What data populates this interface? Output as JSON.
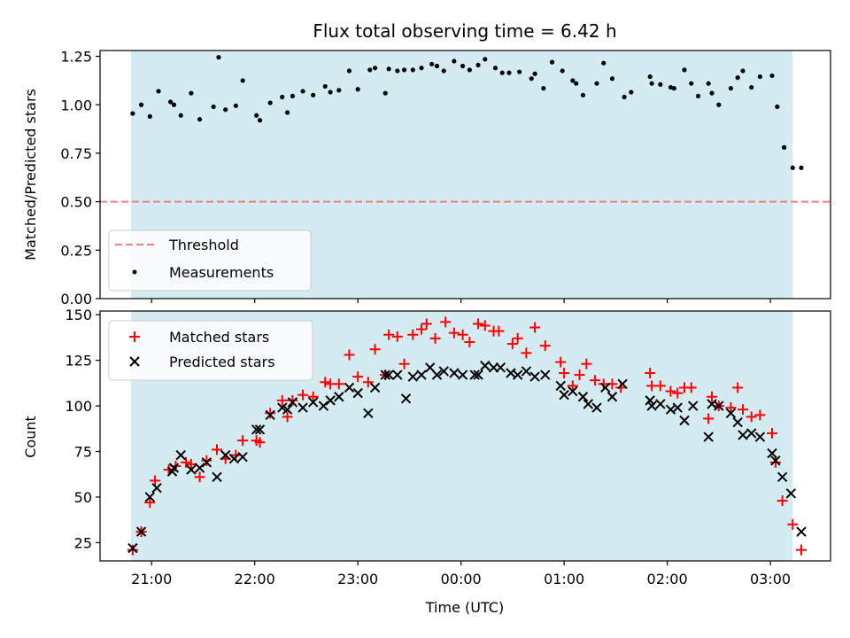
{
  "chart_data": [
    {
      "type": "scatter",
      "title": "Flux total observing time = 6.42 h",
      "xlabel": "",
      "ylabel": "Matched/Predicted stars",
      "ylim": [
        0,
        1.28
      ],
      "yticks": [
        0,
        0.25,
        0.5,
        0.75,
        1.0,
        1.25
      ],
      "ytick_labels": [
        "0.00",
        "0.25",
        "0.50",
        "0.75",
        "1.00",
        "1.25"
      ],
      "xlim": [
        "20:30",
        "03:35"
      ],
      "shaded_span": [
        "20:48",
        "03:13"
      ],
      "shade_color": "#d4ebf1",
      "threshold": {
        "name": "Threshold",
        "y": 0.5,
        "color": "#f08080",
        "style": "dashed"
      },
      "legend": {
        "position": "lower-left",
        "entries": [
          "Threshold",
          "Measurements"
        ]
      },
      "series": [
        {
          "name": "Measurements",
          "marker": "dot",
          "color": "#000000",
          "points": [
            [
              "20:49",
              0.955
            ],
            [
              "20:54",
              1.0
            ],
            [
              "20:59",
              0.94
            ],
            [
              "21:04",
              1.07
            ],
            [
              "21:11",
              1.015
            ],
            [
              "21:13",
              1.0
            ],
            [
              "21:17",
              0.945
            ],
            [
              "21:23",
              1.06
            ],
            [
              "21:28",
              0.925
            ],
            [
              "21:36",
              0.99
            ],
            [
              "21:39",
              1.245
            ],
            [
              "21:43",
              0.975
            ],
            [
              "21:49",
              0.995
            ],
            [
              "21:53",
              1.125
            ],
            [
              "22:01",
              0.945
            ],
            [
              "22:03",
              0.92
            ],
            [
              "22:09",
              1.01
            ],
            [
              "22:16",
              1.04
            ],
            [
              "22:19",
              0.96
            ],
            [
              "22:22",
              1.045
            ],
            [
              "22:28",
              1.07
            ],
            [
              "22:34",
              1.05
            ],
            [
              "22:41",
              1.095
            ],
            [
              "22:44",
              1.065
            ],
            [
              "22:49",
              1.075
            ],
            [
              "22:55",
              1.175
            ],
            [
              "23:00",
              1.08
            ],
            [
              "23:07",
              1.18
            ],
            [
              "23:10",
              1.19
            ],
            [
              "23:16",
              1.06
            ],
            [
              "23:18",
              1.185
            ],
            [
              "23:23",
              1.175
            ],
            [
              "23:27",
              1.18
            ],
            [
              "23:32",
              1.18
            ],
            [
              "23:37",
              1.19
            ],
            [
              "23:43",
              1.21
            ],
            [
              "23:46",
              1.2
            ],
            [
              "23:50",
              1.175
            ],
            [
              "23:56",
              1.225
            ],
            [
              "24:01",
              1.2
            ],
            [
              "24:05",
              1.18
            ],
            [
              "24:10",
              1.205
            ],
            [
              "24:14",
              1.235
            ],
            [
              "24:20",
              1.19
            ],
            [
              "24:24",
              1.165
            ],
            [
              "24:28",
              1.165
            ],
            [
              "24:34",
              1.17
            ],
            [
              "24:41",
              1.135
            ],
            [
              "24:43",
              1.16
            ],
            [
              "24:48",
              1.085
            ],
            [
              "24:53",
              1.22
            ],
            [
              "24:59",
              1.175
            ],
            [
              "25:05",
              1.125
            ],
            [
              "25:07",
              1.11
            ],
            [
              "25:11",
              1.05
            ],
            [
              "25:19",
              1.11
            ],
            [
              "25:23",
              1.215
            ],
            [
              "25:28",
              1.135
            ],
            [
              "25:35",
              1.04
            ],
            [
              "25:39",
              1.065
            ],
            [
              "25:50",
              1.145
            ],
            [
              "25:51",
              1.11
            ],
            [
              "25:56",
              1.105
            ],
            [
              "26:02",
              1.09
            ],
            [
              "26:04",
              1.085
            ],
            [
              "26:10",
              1.18
            ],
            [
              "26:14",
              1.11
            ],
            [
              "26:18",
              1.045
            ],
            [
              "26:24",
              1.11
            ],
            [
              "26:26",
              1.06
            ],
            [
              "26:30",
              1.0
            ],
            [
              "26:37",
              1.085
            ],
            [
              "26:41",
              1.14
            ],
            [
              "26:44",
              1.175
            ],
            [
              "26:49",
              1.09
            ],
            [
              "26:54",
              1.145
            ],
            [
              "27:01",
              1.15
            ],
            [
              "27:04",
              0.99
            ],
            [
              "27:08",
              0.78
            ],
            [
              "27:13",
              0.675
            ],
            [
              "27:18",
              0.675
            ]
          ]
        }
      ]
    },
    {
      "type": "scatter",
      "title": "",
      "xlabel": "Time (UTC)",
      "ylabel": "Count",
      "ylim": [
        15,
        152
      ],
      "yticks": [
        25,
        50,
        75,
        100,
        125,
        150
      ],
      "ytick_labels": [
        "25",
        "50",
        "75",
        "100",
        "125",
        "150"
      ],
      "xlim": [
        "20:30",
        "03:35"
      ],
      "xticks": [
        "21:00",
        "22:00",
        "23:00",
        "00:00",
        "01:00",
        "02:00",
        "03:00"
      ],
      "shaded_span": [
        "20:48",
        "03:13"
      ],
      "shade_color": "#d4ebf1",
      "legend": {
        "position": "upper-left",
        "entries": [
          "Matched stars",
          "Predicted stars"
        ]
      },
      "series": [
        {
          "name": "Matched stars",
          "marker": "plus",
          "color": "#ff0000",
          "points": [
            [
              "20:49",
              21
            ],
            [
              "20:54",
              31
            ],
            [
              "20:59",
              47
            ],
            [
              "21:02",
              59
            ],
            [
              "21:10",
              65
            ],
            [
              "21:14",
              67
            ],
            [
              "21:20",
              69
            ],
            [
              "21:23",
              68
            ],
            [
              "21:28",
              61
            ],
            [
              "21:32",
              70
            ],
            [
              "21:38",
              76
            ],
            [
              "21:43",
              71
            ],
            [
              "21:49",
              73
            ],
            [
              "21:53",
              81
            ],
            [
              "22:01",
              81
            ],
            [
              "22:03",
              80
            ],
            [
              "22:09",
              96
            ],
            [
              "22:16",
              103
            ],
            [
              "22:19",
              94
            ],
            [
              "22:22",
              103
            ],
            [
              "22:28",
              106
            ],
            [
              "22:34",
              105
            ],
            [
              "22:41",
              113
            ],
            [
              "22:44",
              112
            ],
            [
              "22:49",
              112
            ],
            [
              "22:55",
              128
            ],
            [
              "23:00",
              116
            ],
            [
              "23:06",
              113
            ],
            [
              "23:10",
              131
            ],
            [
              "23:16",
              117
            ],
            [
              "23:18",
              139
            ],
            [
              "23:23",
              138
            ],
            [
              "23:27",
              123
            ],
            [
              "23:32",
              139
            ],
            [
              "23:37",
              142
            ],
            [
              "23:40",
              145
            ],
            [
              "23:45",
              137
            ],
            [
              "23:51",
              146
            ],
            [
              "23:56",
              140
            ],
            [
              "24:01",
              139
            ],
            [
              "24:05",
              135
            ],
            [
              "24:10",
              145
            ],
            [
              "24:14",
              144
            ],
            [
              "24:19",
              141
            ],
            [
              "24:22",
              141
            ],
            [
              "24:30",
              134
            ],
            [
              "24:33",
              137
            ],
            [
              "24:38",
              129
            ],
            [
              "24:43",
              143
            ],
            [
              "24:49",
              133
            ],
            [
              "24:58",
              124
            ],
            [
              "25:00",
              118
            ],
            [
              "25:05",
              111
            ],
            [
              "25:09",
              117
            ],
            [
              "25:13",
              123
            ],
            [
              "25:18",
              114
            ],
            [
              "25:23",
              112
            ],
            [
              "25:28",
              112
            ],
            [
              "25:33",
              110
            ],
            [
              "25:50",
              118
            ],
            [
              "25:51",
              111
            ],
            [
              "25:56",
              111
            ],
            [
              "26:02",
              108
            ],
            [
              "26:06",
              107
            ],
            [
              "26:10",
              110
            ],
            [
              "26:14",
              110
            ],
            [
              "26:24",
              93
            ],
            [
              "26:26",
              105
            ],
            [
              "26:30",
              100
            ],
            [
              "26:37",
              99
            ],
            [
              "26:41",
              110
            ],
            [
              "26:44",
              98
            ],
            [
              "26:49",
              94
            ],
            [
              "26:54",
              95
            ],
            [
              "27:01",
              85
            ],
            [
              "27:03",
              69
            ],
            [
              "27:07",
              48
            ],
            [
              "27:13",
              35
            ],
            [
              "27:18",
              21
            ]
          ]
        },
        {
          "name": "Predicted stars",
          "marker": "x",
          "color": "#000000",
          "points": [
            [
              "20:49",
              22
            ],
            [
              "20:54",
              31
            ],
            [
              "20:59",
              50
            ],
            [
              "21:03",
              55
            ],
            [
              "21:12",
              64
            ],
            [
              "21:13",
              66
            ],
            [
              "21:17",
              73
            ],
            [
              "21:23",
              65
            ],
            [
              "21:28",
              66
            ],
            [
              "21:32",
              69
            ],
            [
              "21:38",
              61
            ],
            [
              "21:43",
              73
            ],
            [
              "21:48",
              71
            ],
            [
              "21:53",
              72
            ],
            [
              "22:01",
              87
            ],
            [
              "22:03",
              87
            ],
            [
              "22:09",
              95
            ],
            [
              "22:16",
              99
            ],
            [
              "22:19",
              98
            ],
            [
              "22:22",
              102
            ],
            [
              "22:28",
              99
            ],
            [
              "22:34",
              102
            ],
            [
              "22:40",
              100
            ],
            [
              "22:44",
              103
            ],
            [
              "22:49",
              105
            ],
            [
              "22:55",
              110
            ],
            [
              "23:00",
              107
            ],
            [
              "23:06",
              96
            ],
            [
              "23:10",
              110
            ],
            [
              "23:16",
              117
            ],
            [
              "23:18",
              117
            ],
            [
              "23:23",
              117
            ],
            [
              "23:28",
              104
            ],
            [
              "23:32",
              116
            ],
            [
              "23:37",
              117
            ],
            [
              "23:42",
              121
            ],
            [
              "23:46",
              117
            ],
            [
              "23:50",
              119
            ],
            [
              "23:56",
              118
            ],
            [
              "24:01",
              117
            ],
            [
              "24:08",
              117
            ],
            [
              "24:10",
              117
            ],
            [
              "24:14",
              122
            ],
            [
              "24:19",
              121
            ],
            [
              "24:23",
              121
            ],
            [
              "24:29",
              118
            ],
            [
              "24:33",
              117
            ],
            [
              "24:38",
              119
            ],
            [
              "24:43",
              116
            ],
            [
              "24:49",
              117
            ],
            [
              "24:58",
              111
            ],
            [
              "25:00",
              106
            ],
            [
              "25:05",
              108
            ],
            [
              "25:11",
              105
            ],
            [
              "25:14",
              101
            ],
            [
              "25:19",
              99
            ],
            [
              "25:24",
              110
            ],
            [
              "25:28",
              105
            ],
            [
              "25:34",
              112
            ],
            [
              "25:50",
              103
            ],
            [
              "25:51",
              100
            ],
            [
              "25:56",
              101
            ],
            [
              "26:02",
              98
            ],
            [
              "26:06",
              99
            ],
            [
              "26:10",
              92
            ],
            [
              "26:15",
              100
            ],
            [
              "26:24",
              83
            ],
            [
              "26:26",
              101
            ],
            [
              "26:30",
              100
            ],
            [
              "26:37",
              96
            ],
            [
              "26:41",
              91
            ],
            [
              "26:44",
              84
            ],
            [
              "26:49",
              85
            ],
            [
              "26:54",
              83
            ],
            [
              "27:01",
              74
            ],
            [
              "27:03",
              70
            ],
            [
              "27:07",
              61
            ],
            [
              "27:12",
              52
            ],
            [
              "27:18",
              31
            ]
          ]
        }
      ]
    }
  ]
}
